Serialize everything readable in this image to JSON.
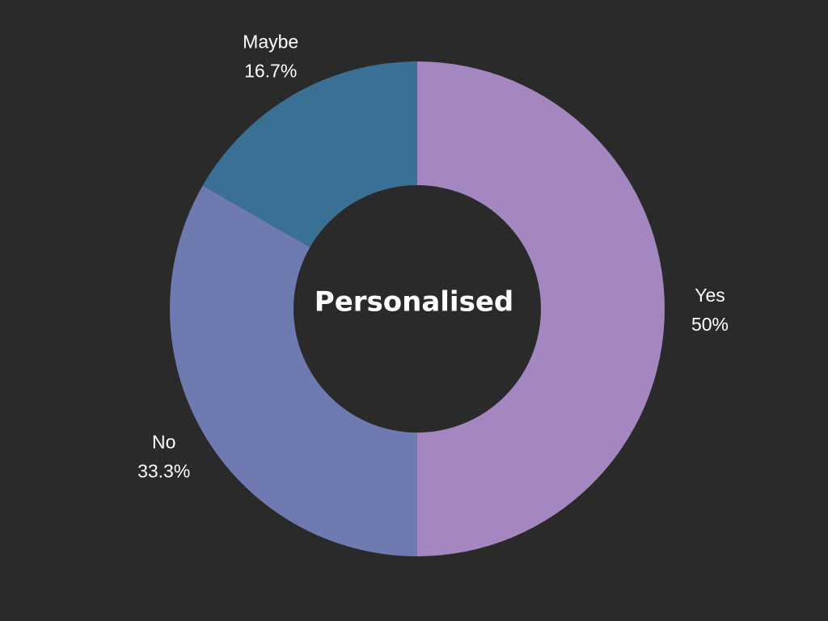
{
  "chart_data": {
    "type": "pie",
    "title": "Personalised",
    "background_color": "#2a2a2a",
    "hole_color": "#2a2a2a",
    "legend": "none",
    "slices": [
      {
        "label": "Yes",
        "value": 50,
        "percent_label": "50%",
        "color": "#a487c0"
      },
      {
        "label": "No",
        "value": 33.3,
        "percent_label": "33.3%",
        "color": "#6f7bb0"
      },
      {
        "label": "Maybe",
        "value": 16.7,
        "percent_label": "16.7%",
        "color": "#3a7094"
      }
    ]
  }
}
